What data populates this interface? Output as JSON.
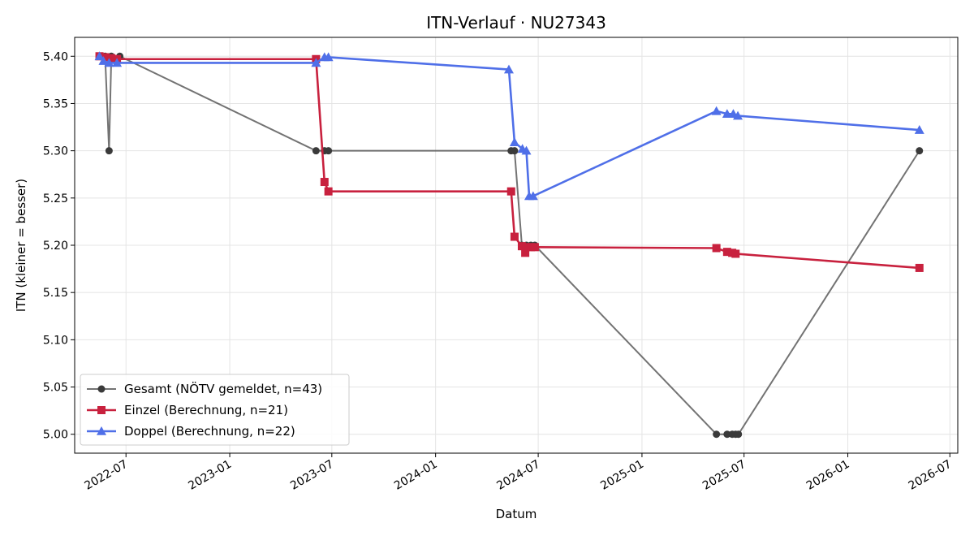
{
  "chart_data": {
    "type": "line",
    "title": "ITN-Verlauf · NU27343",
    "xlabel": "Datum",
    "ylabel": "ITN  (kleiner = besser)",
    "xlim": [
      "2022-04-01",
      "2026-07-15"
    ],
    "ylim": [
      4.98,
      5.42
    ],
    "x_ticks": [
      "2022-07",
      "2023-01",
      "2023-07",
      "2024-01",
      "2024-07",
      "2025-01",
      "2025-07",
      "2026-01",
      "2026-07"
    ],
    "y_ticks": [
      "5.00",
      "5.05",
      "5.10",
      "5.15",
      "5.20",
      "5.25",
      "5.30",
      "5.35",
      "5.40"
    ],
    "grid": true,
    "legend_position": "lower-left",
    "series": [
      {
        "name": "Gesamt (NÖTV gemeldet, n=43)",
        "color": "#444444",
        "line_alpha": 0.75,
        "marker": "circle",
        "points": [
          [
            "2022-05-15",
            5.4
          ],
          [
            "2022-05-25",
            5.4
          ],
          [
            "2022-06-01",
            5.3
          ],
          [
            "2022-06-05",
            5.4
          ],
          [
            "2022-06-20",
            5.4
          ],
          [
            "2023-06-03",
            5.3
          ],
          [
            "2023-06-18",
            5.3
          ],
          [
            "2023-06-25",
            5.3
          ],
          [
            "2024-05-14",
            5.3
          ],
          [
            "2024-05-20",
            5.3
          ],
          [
            "2024-06-02",
            5.2
          ],
          [
            "2024-06-10",
            5.2
          ],
          [
            "2024-06-18",
            5.2
          ],
          [
            "2024-06-25",
            5.2
          ],
          [
            "2025-05-13",
            5.0
          ],
          [
            "2025-06-01",
            5.0
          ],
          [
            "2025-06-10",
            5.0
          ],
          [
            "2025-06-16",
            5.0
          ],
          [
            "2025-06-21",
            5.0
          ],
          [
            "2026-05-08",
            5.3
          ]
        ]
      },
      {
        "name": "Einzel (Berechnung, n=21)",
        "color": "#c8213e",
        "marker": "square",
        "points": [
          [
            "2022-05-15",
            5.4
          ],
          [
            "2022-05-25",
            5.399
          ],
          [
            "2022-06-05",
            5.398
          ],
          [
            "2022-06-15",
            5.397
          ],
          [
            "2023-06-03",
            5.397
          ],
          [
            "2023-06-18",
            5.267
          ],
          [
            "2023-06-25",
            5.257
          ],
          [
            "2024-05-14",
            5.257
          ],
          [
            "2024-05-20",
            5.209
          ],
          [
            "2024-06-02",
            5.199
          ],
          [
            "2024-06-08",
            5.192
          ],
          [
            "2024-06-10",
            5.198
          ],
          [
            "2024-06-18",
            5.198
          ],
          [
            "2024-06-25",
            5.198
          ],
          [
            "2025-05-13",
            5.197
          ],
          [
            "2025-06-01",
            5.193
          ],
          [
            "2025-06-10",
            5.192
          ],
          [
            "2025-06-16",
            5.191
          ],
          [
            "2026-05-08",
            5.176
          ]
        ]
      },
      {
        "name": "Doppel (Berechnung, n=22)",
        "color": "#4f6fe8",
        "marker": "triangle",
        "points": [
          [
            "2022-05-15",
            5.4
          ],
          [
            "2022-05-22",
            5.395
          ],
          [
            "2022-06-01",
            5.393
          ],
          [
            "2022-06-15",
            5.393
          ],
          [
            "2023-06-03",
            5.393
          ],
          [
            "2023-06-18",
            5.399
          ],
          [
            "2023-06-25",
            5.399
          ],
          [
            "2024-05-10",
            5.386
          ],
          [
            "2024-05-20",
            5.309
          ],
          [
            "2024-06-03",
            5.302
          ],
          [
            "2024-06-10",
            5.3
          ],
          [
            "2024-06-15",
            5.252
          ],
          [
            "2024-06-22",
            5.252
          ],
          [
            "2025-05-13",
            5.342
          ],
          [
            "2025-06-01",
            5.339
          ],
          [
            "2025-06-12",
            5.339
          ],
          [
            "2025-06-20",
            5.337
          ],
          [
            "2026-05-08",
            5.322
          ]
        ]
      }
    ]
  }
}
